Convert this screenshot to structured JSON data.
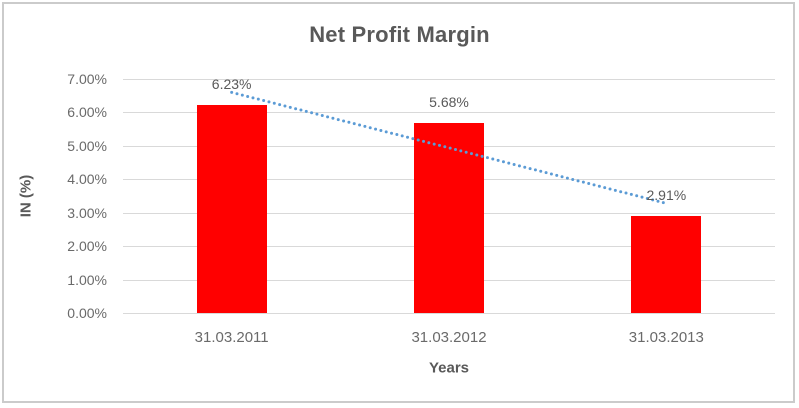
{
  "chart_data": {
    "type": "bar",
    "title": "Net Profit Margin",
    "xlabel": "Years",
    "ylabel": "IN (%)",
    "categories": [
      "31.03.2011",
      "31.03.2012",
      "31.03.2013"
    ],
    "values": [
      6.23,
      5.68,
      2.91
    ],
    "data_labels": [
      "6.23%",
      "5.68%",
      "2.91%"
    ],
    "ylim": [
      0,
      7
    ],
    "ytick_labels": [
      "0.00%",
      "1.00%",
      "2.00%",
      "3.00%",
      "4.00%",
      "5.00%",
      "6.00%",
      "7.00%"
    ],
    "grid": true,
    "legend": "none",
    "bar_color": "#ff0000",
    "trendline": {
      "type": "linear",
      "style": "dotted",
      "color": "#5b9bd5"
    },
    "colors": {
      "title_text": "#595959",
      "axis_title_text": "#595959",
      "data_label_text": "#595959",
      "tick_text": "#6a6a6a",
      "gridline": "#d9d9d9",
      "border": "#cbcbcb",
      "background": "#ffffff"
    }
  }
}
